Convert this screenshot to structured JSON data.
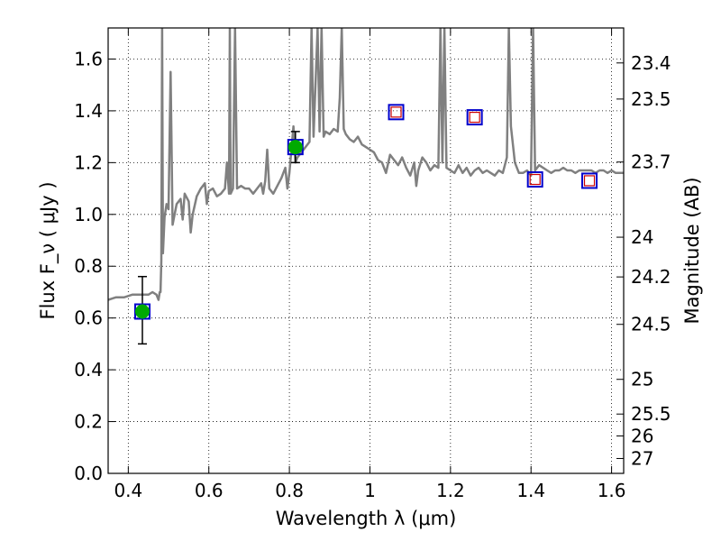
{
  "chart_data": {
    "type": "line",
    "xlabel": "Wavelength  λ (μm)",
    "ylabel": "Flux  F_ν  ( μJy )",
    "ylabel_right": "Magnitude (AB)",
    "xlim": [
      0.35,
      1.63
    ],
    "ylim": [
      0.0,
      1.72
    ],
    "grid": true,
    "xticks": [
      0.4,
      0.6,
      0.8,
      1.0,
      1.2,
      1.4,
      1.6
    ],
    "xtick_labels": [
      "0.4",
      "0.6",
      "0.8",
      "1",
      "1.2",
      "1.4",
      "1.6"
    ],
    "yticks": [
      0.0,
      0.2,
      0.4,
      0.6,
      0.8,
      1.0,
      1.2,
      1.4,
      1.6
    ],
    "ytick_labels": [
      "0.0",
      "0.2",
      "0.4",
      "0.6",
      "0.8",
      "1.0",
      "1.2",
      "1.4",
      "1.6"
    ],
    "mag_ticks": [
      23.4,
      23.5,
      23.7,
      24,
      24.2,
      24.5,
      25,
      25.5,
      26,
      27
    ],
    "mag_tick_labels": [
      "23.4",
      "23.5",
      "23.7",
      "24",
      "24.2",
      "24.5",
      "25",
      "25.5",
      "26",
      "27"
    ],
    "colors": {
      "spectrum": "#808080",
      "model_box": "#0000cc",
      "observed": "#00aa00",
      "upper_limit": "#cc0000",
      "errorbar": "#000000",
      "grid": "#000000"
    },
    "spectrum": [
      [
        0.35,
        0.67
      ],
      [
        0.37,
        0.68
      ],
      [
        0.39,
        0.68
      ],
      [
        0.41,
        0.69
      ],
      [
        0.43,
        0.69
      ],
      [
        0.45,
        0.69
      ],
      [
        0.46,
        0.7
      ],
      [
        0.47,
        0.69
      ],
      [
        0.475,
        0.67
      ],
      [
        0.478,
        0.7
      ],
      [
        0.48,
        0.7
      ],
      [
        0.482,
        0.82
      ],
      [
        0.484,
        1.72
      ],
      [
        0.486,
        0.85
      ],
      [
        0.49,
        0.99
      ],
      [
        0.495,
        1.04
      ],
      [
        0.5,
        1.02
      ],
      [
        0.505,
        1.55
      ],
      [
        0.51,
        0.96
      ],
      [
        0.52,
        1.04
      ],
      [
        0.53,
        1.06
      ],
      [
        0.535,
        0.98
      ],
      [
        0.54,
        1.08
      ],
      [
        0.55,
        1.05
      ],
      [
        0.555,
        0.93
      ],
      [
        0.56,
        1.0
      ],
      [
        0.57,
        1.07
      ],
      [
        0.58,
        1.1
      ],
      [
        0.59,
        1.12
      ],
      [
        0.595,
        1.04
      ],
      [
        0.6,
        1.09
      ],
      [
        0.61,
        1.1
      ],
      [
        0.62,
        1.07
      ],
      [
        0.63,
        1.08
      ],
      [
        0.64,
        1.1
      ],
      [
        0.645,
        1.2
      ],
      [
        0.65,
        1.08
      ],
      [
        0.652,
        1.72
      ],
      [
        0.654,
        1.08
      ],
      [
        0.66,
        1.1
      ],
      [
        0.665,
        1.72
      ],
      [
        0.67,
        1.1
      ],
      [
        0.68,
        1.11
      ],
      [
        0.69,
        1.1
      ],
      [
        0.7,
        1.1
      ],
      [
        0.71,
        1.08
      ],
      [
        0.72,
        1.1
      ],
      [
        0.73,
        1.12
      ],
      [
        0.735,
        1.08
      ],
      [
        0.74,
        1.13
      ],
      [
        0.745,
        1.25
      ],
      [
        0.75,
        1.1
      ],
      [
        0.76,
        1.08
      ],
      [
        0.77,
        1.11
      ],
      [
        0.78,
        1.14
      ],
      [
        0.79,
        1.18
      ],
      [
        0.795,
        1.1
      ],
      [
        0.8,
        1.16
      ],
      [
        0.81,
        1.34
      ],
      [
        0.815,
        1.2
      ],
      [
        0.82,
        1.22
      ],
      [
        0.83,
        1.24
      ],
      [
        0.84,
        1.26
      ],
      [
        0.85,
        1.28
      ],
      [
        0.855,
        1.72
      ],
      [
        0.86,
        1.3
      ],
      [
        0.87,
        1.72
      ],
      [
        0.875,
        1.32
      ],
      [
        0.88,
        1.72
      ],
      [
        0.885,
        1.3
      ],
      [
        0.89,
        1.32
      ],
      [
        0.9,
        1.31
      ],
      [
        0.91,
        1.33
      ],
      [
        0.92,
        1.32
      ],
      [
        0.925,
        1.45
      ],
      [
        0.93,
        1.72
      ],
      [
        0.935,
        1.33
      ],
      [
        0.94,
        1.31
      ],
      [
        0.95,
        1.29
      ],
      [
        0.96,
        1.28
      ],
      [
        0.97,
        1.3
      ],
      [
        0.98,
        1.27
      ],
      [
        0.99,
        1.26
      ],
      [
        1.0,
        1.25
      ],
      [
        1.01,
        1.24
      ],
      [
        1.02,
        1.21
      ],
      [
        1.03,
        1.2
      ],
      [
        1.04,
        1.16
      ],
      [
        1.05,
        1.23
      ],
      [
        1.06,
        1.21
      ],
      [
        1.07,
        1.19
      ],
      [
        1.08,
        1.22
      ],
      [
        1.09,
        1.18
      ],
      [
        1.1,
        1.15
      ],
      [
        1.11,
        1.2
      ],
      [
        1.115,
        1.11
      ],
      [
        1.12,
        1.17
      ],
      [
        1.13,
        1.22
      ],
      [
        1.14,
        1.2
      ],
      [
        1.15,
        1.17
      ],
      [
        1.16,
        1.19
      ],
      [
        1.17,
        1.18
      ],
      [
        1.175,
        1.72
      ],
      [
        1.18,
        1.2
      ],
      [
        1.185,
        1.72
      ],
      [
        1.19,
        1.18
      ],
      [
        1.2,
        1.17
      ],
      [
        1.21,
        1.16
      ],
      [
        1.22,
        1.19
      ],
      [
        1.23,
        1.16
      ],
      [
        1.24,
        1.18
      ],
      [
        1.25,
        1.15
      ],
      [
        1.26,
        1.17
      ],
      [
        1.27,
        1.18
      ],
      [
        1.28,
        1.16
      ],
      [
        1.29,
        1.17
      ],
      [
        1.3,
        1.16
      ],
      [
        1.31,
        1.15
      ],
      [
        1.32,
        1.17
      ],
      [
        1.33,
        1.16
      ],
      [
        1.34,
        1.22
      ],
      [
        1.345,
        1.72
      ],
      [
        1.35,
        1.34
      ],
      [
        1.36,
        1.2
      ],
      [
        1.37,
        1.16
      ],
      [
        1.38,
        1.16
      ],
      [
        1.39,
        1.17
      ],
      [
        1.4,
        1.15
      ],
      [
        1.405,
        1.72
      ],
      [
        1.41,
        1.17
      ],
      [
        1.42,
        1.19
      ],
      [
        1.43,
        1.18
      ],
      [
        1.44,
        1.17
      ],
      [
        1.45,
        1.16
      ],
      [
        1.46,
        1.17
      ],
      [
        1.47,
        1.17
      ],
      [
        1.48,
        1.18
      ],
      [
        1.49,
        1.17
      ],
      [
        1.5,
        1.17
      ],
      [
        1.51,
        1.16
      ],
      [
        1.52,
        1.17
      ],
      [
        1.53,
        1.17
      ],
      [
        1.54,
        1.17
      ],
      [
        1.55,
        1.17
      ],
      [
        1.56,
        1.16
      ],
      [
        1.57,
        1.17
      ],
      [
        1.58,
        1.17
      ],
      [
        1.59,
        1.16
      ],
      [
        1.6,
        1.17
      ],
      [
        1.61,
        1.16
      ],
      [
        1.62,
        1.16
      ],
      [
        1.63,
        1.16
      ]
    ],
    "model_points": [
      {
        "x": 0.435,
        "y": 0.625
      },
      {
        "x": 0.815,
        "y": 1.26
      },
      {
        "x": 1.065,
        "y": 1.395
      },
      {
        "x": 1.26,
        "y": 1.375
      },
      {
        "x": 1.41,
        "y": 1.135
      },
      {
        "x": 1.545,
        "y": 1.13
      }
    ],
    "observed_points": [
      {
        "x": 0.435,
        "y": 0.625,
        "yerr_low": 0.5,
        "yerr_high": 0.76
      },
      {
        "x": 0.815,
        "y": 1.26,
        "yerr_low": 1.2,
        "yerr_high": 1.32
      }
    ],
    "upper_limits": [
      {
        "x": 1.065,
        "y": 1.395
      },
      {
        "x": 1.26,
        "y": 1.375
      },
      {
        "x": 1.41,
        "y": 1.135
      },
      {
        "x": 1.545,
        "y": 1.13
      }
    ]
  }
}
